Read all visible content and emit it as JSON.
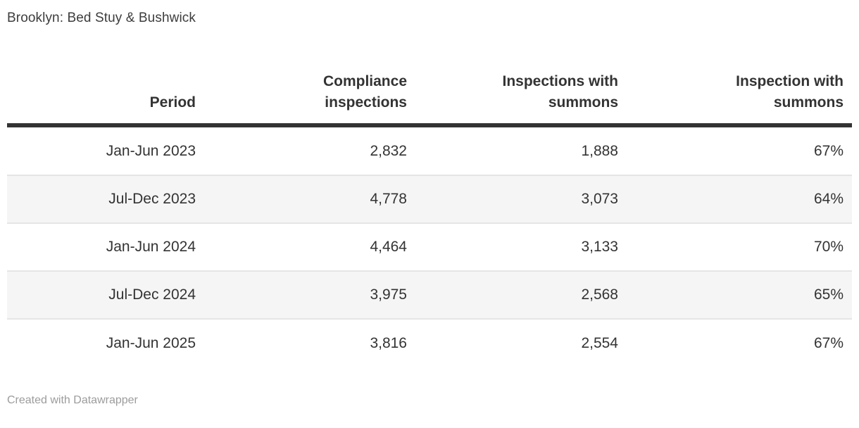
{
  "title": "Brooklyn: Bed Stuy & Bushwick",
  "chart_data": {
    "type": "table",
    "title": "Brooklyn: Bed Stuy & Bushwick",
    "columns": [
      "Period",
      "Compliance inspections",
      "Inspections with summons",
      "Inspection with summons"
    ],
    "rows": [
      [
        "Jan-Jun 2023",
        "2,832",
        "1,888",
        "67%"
      ],
      [
        "Jul-Dec 2023",
        "4,778",
        "3,073",
        "64%"
      ],
      [
        "Jan-Jun 2024",
        "4,464",
        "3,133",
        "70%"
      ],
      [
        "Jul-Dec 2024",
        "3,975",
        "2,568",
        "65%"
      ],
      [
        "Jan-Jun 2025",
        "3,816",
        "2,554",
        "67%"
      ]
    ],
    "layout_hints": {
      "alignment": "right",
      "zebra_stripes": true,
      "striped_rows": [
        2,
        4
      ],
      "header_rule": true
    }
  },
  "footer": {
    "prefix": "Created with ",
    "link_label": "Datawrapper"
  },
  "colors": {
    "background": "#ffffff",
    "title_text": "#3d3d3d",
    "header_text": "#333333",
    "body_text": "#333333",
    "header_rule": "#333333",
    "row_separator": "#e5e5e5",
    "stripe": "#f5f5f5",
    "footer_text": "#9c9c9c"
  }
}
